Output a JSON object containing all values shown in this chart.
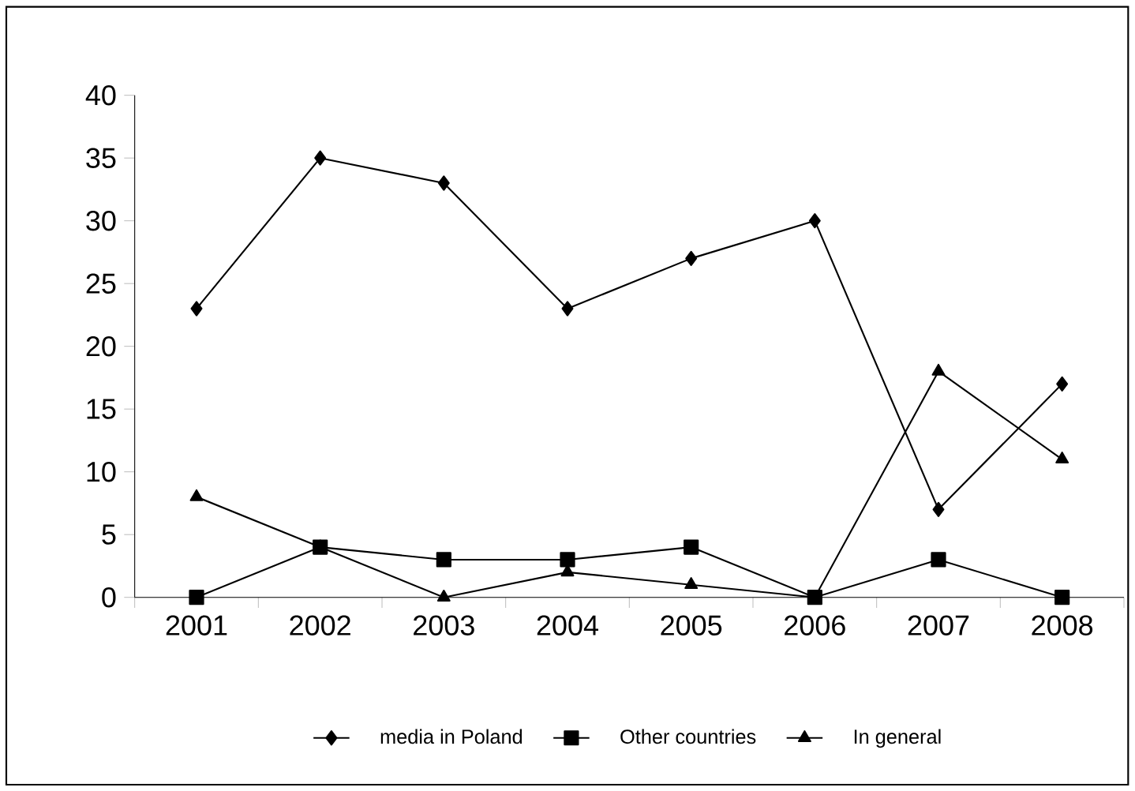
{
  "chart_data": {
    "type": "line",
    "categories": [
      "2001",
      "2002",
      "2003",
      "2004",
      "2005",
      "2006",
      "2007",
      "2008"
    ],
    "series": [
      {
        "name": "media in Poland",
        "color": "#000000",
        "marker": "diamond",
        "values": [
          23,
          35,
          33,
          23,
          27,
          30,
          7,
          17
        ]
      },
      {
        "name": "Other countries",
        "color": "#000000",
        "marker": "square",
        "values": [
          0,
          4,
          3,
          3,
          4,
          0,
          3,
          0
        ]
      },
      {
        "name": "In general",
        "color": "#000000",
        "marker": "triangle",
        "values": [
          8,
          4,
          0,
          2,
          1,
          0,
          18,
          11
        ]
      }
    ],
    "ylim": [
      0,
      40
    ],
    "yticks": [
      0,
      5,
      10,
      15,
      20,
      25,
      30,
      35,
      40
    ],
    "legend": "bottom",
    "grid": false,
    "line_style": "solid"
  }
}
